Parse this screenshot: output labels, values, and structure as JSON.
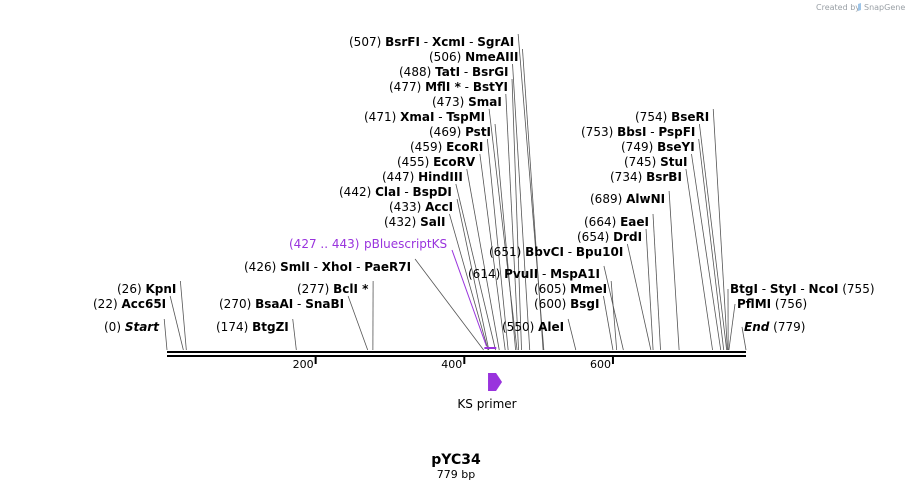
{
  "credit": {
    "created_by": "Created by",
    "brand": "SnapGene"
  },
  "plasmid": {
    "name": "pYC34",
    "length_label": "779 bp",
    "length": 779
  },
  "axis": {
    "ticks": [
      {
        "value": 200,
        "label": "200"
      },
      {
        "value": 400,
        "label": "400"
      },
      {
        "value": 600,
        "label": "600"
      }
    ]
  },
  "feature": {
    "label": "pBluescriptKS",
    "range_label": "(427 .. 443)",
    "start": 427,
    "end": 443,
    "color": "#9933dd"
  },
  "primer": {
    "label": "KS primer",
    "position": 440,
    "color": "#9933dd"
  },
  "sites": [
    {
      "pos": "(507)",
      "p": 507,
      "names": [
        "BsrFI",
        "XcmI",
        "SgrAI"
      ],
      "side": "left"
    },
    {
      "pos": "(506)",
      "p": 506,
      "names": [
        "NmeAIII"
      ],
      "side": "left"
    },
    {
      "pos": "(488)",
      "p": 488,
      "names": [
        "TatI",
        "BsrGI"
      ],
      "side": "left"
    },
    {
      "pos": "(477)",
      "p": 477,
      "names": [
        "MflI *",
        "BstYI"
      ],
      "side": "left"
    },
    {
      "pos": "(473)",
      "p": 473,
      "names": [
        "SmaI"
      ],
      "side": "left"
    },
    {
      "pos": "(471)",
      "p": 471,
      "names": [
        "XmaI",
        "TspMI"
      ],
      "side": "left"
    },
    {
      "pos": "(469)",
      "p": 469,
      "names": [
        "PstI"
      ],
      "side": "left"
    },
    {
      "pos": "(459)",
      "p": 459,
      "names": [
        "EcoRI"
      ],
      "side": "left"
    },
    {
      "pos": "(455)",
      "p": 455,
      "names": [
        "EcoRV"
      ],
      "side": "left"
    },
    {
      "pos": "(447)",
      "p": 447,
      "names": [
        "HindIII"
      ],
      "side": "left"
    },
    {
      "pos": "(442)",
      "p": 442,
      "names": [
        "ClaI",
        "BspDI"
      ],
      "side": "left"
    },
    {
      "pos": "(433)",
      "p": 433,
      "names": [
        "AccI"
      ],
      "side": "left"
    },
    {
      "pos": "(432)",
      "p": 432,
      "names": [
        "SalI"
      ],
      "side": "left"
    },
    {
      "pos": "(426)",
      "p": 426,
      "names": [
        "SmlI",
        "XhoI",
        "PaeR7I"
      ],
      "side": "left"
    },
    {
      "pos": "(26)",
      "p": 26,
      "names": [
        "KpnI"
      ],
      "side": "left"
    },
    {
      "pos": "(22)",
      "p": 22,
      "names": [
        "Acc65I"
      ],
      "side": "left"
    },
    {
      "pos": "(277)",
      "p": 277,
      "names": [
        "BclI *"
      ],
      "side": "left"
    },
    {
      "pos": "(270)",
      "p": 270,
      "names": [
        "BsaAI",
        "SnaBI"
      ],
      "side": "left"
    },
    {
      "pos": "(174)",
      "p": 174,
      "names": [
        "BtgZI"
      ],
      "side": "left"
    },
    {
      "pos": "(651)",
      "p": 651,
      "names": [
        "BbvCI",
        "Bpu10I"
      ],
      "side": "left"
    },
    {
      "pos": "(614)",
      "p": 614,
      "names": [
        "PvuII",
        "MspA1I"
      ],
      "side": "left"
    },
    {
      "pos": "(605)",
      "p": 605,
      "names": [
        "MmeI"
      ],
      "side": "left"
    },
    {
      "pos": "(600)",
      "p": 600,
      "names": [
        "BsgI"
      ],
      "side": "left"
    },
    {
      "pos": "(550)",
      "p": 550,
      "names": [
        "AleI"
      ],
      "side": "left"
    },
    {
      "pos": "(754)",
      "p": 754,
      "names": [
        "BseRI"
      ],
      "side": "left"
    },
    {
      "pos": "(753)",
      "p": 753,
      "names": [
        "BbsI",
        "PspFI"
      ],
      "side": "left"
    },
    {
      "pos": "(749)",
      "p": 749,
      "names": [
        "BseYI"
      ],
      "side": "left"
    },
    {
      "pos": "(745)",
      "p": 745,
      "names": [
        "StuI"
      ],
      "side": "left"
    },
    {
      "pos": "(734)",
      "p": 734,
      "names": [
        "BsrBI"
      ],
      "side": "left"
    },
    {
      "pos": "(689)",
      "p": 689,
      "names": [
        "AlwNI"
      ],
      "side": "left"
    },
    {
      "pos": "(664)",
      "p": 664,
      "names": [
        "EaeI"
      ],
      "side": "left"
    },
    {
      "pos": "(654)",
      "p": 654,
      "names": [
        "DrdI"
      ],
      "side": "left"
    },
    {
      "pos": "(755)",
      "p": 755,
      "names": [
        "BtgI",
        "StyI",
        "NcoI"
      ],
      "side": "right"
    },
    {
      "pos": "(756)",
      "p": 756,
      "names": [
        "PflMI"
      ],
      "side": "right"
    },
    {
      "pos": "(0)",
      "p": 0,
      "names": [
        "Start"
      ],
      "side": "left",
      "italic": true
    },
    {
      "pos": "(779)",
      "p": 779,
      "names": [
        "End"
      ],
      "side": "right",
      "italic": true
    }
  ]
}
